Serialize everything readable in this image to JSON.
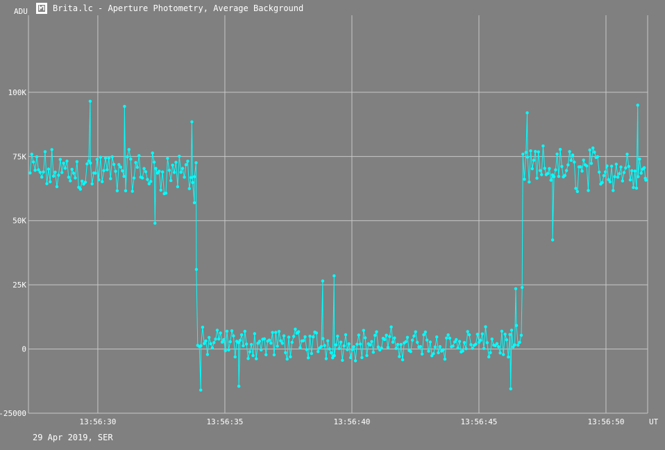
{
  "window": {
    "title": "Brita.lc - Aperture Photometry, Average Background",
    "icon": "light-curve-icon"
  },
  "footer": {
    "date_label": "29 Apr 2019, SER"
  },
  "colors": {
    "background": "#808080",
    "grid": "#c8c8c8",
    "series": "#00ffff",
    "text": "#ffffff"
  },
  "chart_data": {
    "type": "line",
    "ylabel": "ADU",
    "xlabel": "UT",
    "xlim": [
      "13:56:27.27",
      "13:56:51.64"
    ],
    "ylim": [
      -25000,
      130000
    ],
    "yticks": [
      -25000,
      0,
      25000,
      50000,
      75000,
      100000
    ],
    "ytick_labels": [
      "-25000",
      "0",
      "25K",
      "50K",
      "75K",
      "100K"
    ],
    "xticks": [
      "13:56:30",
      "13:56:35",
      "13:56:40",
      "13:56:45",
      "13:56:50"
    ],
    "grid": true,
    "series": [
      {
        "markers": true,
        "segments": [
          {
            "t_start": "13:56:27.30",
            "t_end": "13:56:33.90",
            "mean": 69000,
            "spread": 11000,
            "count": 100
          },
          {
            "t_start": "13:56:33.90",
            "t_end": "13:56:46.70",
            "mean": 2000,
            "spread": 7500,
            "count": 200
          },
          {
            "t_start": "13:56:46.70",
            "t_end": "13:56:51.60",
            "mean": 70000,
            "spread": 11000,
            "count": 80
          }
        ],
        "extremes": [
          {
            "t": "13:56:29.70",
            "y": 96500
          },
          {
            "t": "13:56:31.05",
            "y": 94500
          },
          {
            "t": "13:56:32.25",
            "y": 49000
          },
          {
            "t": "13:56:33.70",
            "y": 88500
          },
          {
            "t": "13:56:33.80",
            "y": 57000
          },
          {
            "t": "13:56:33.88",
            "y": 31000
          },
          {
            "t": "13:56:34.05",
            "y": -16000
          },
          {
            "t": "13:56:35.55",
            "y": -14500
          },
          {
            "t": "13:56:38.85",
            "y": 26500
          },
          {
            "t": "13:56:39.30",
            "y": 28500
          },
          {
            "t": "13:56:46.25",
            "y": -15500
          },
          {
            "t": "13:56:46.45",
            "y": 23500
          },
          {
            "t": "13:56:46.70",
            "y": 24000
          },
          {
            "t": "13:56:46.90",
            "y": 92000
          },
          {
            "t": "13:56:47.90",
            "y": 42500
          },
          {
            "t": "13:56:51.25",
            "y": 95000
          },
          {
            "t": "13:56:51.55",
            "y": 66500
          }
        ]
      }
    ]
  }
}
